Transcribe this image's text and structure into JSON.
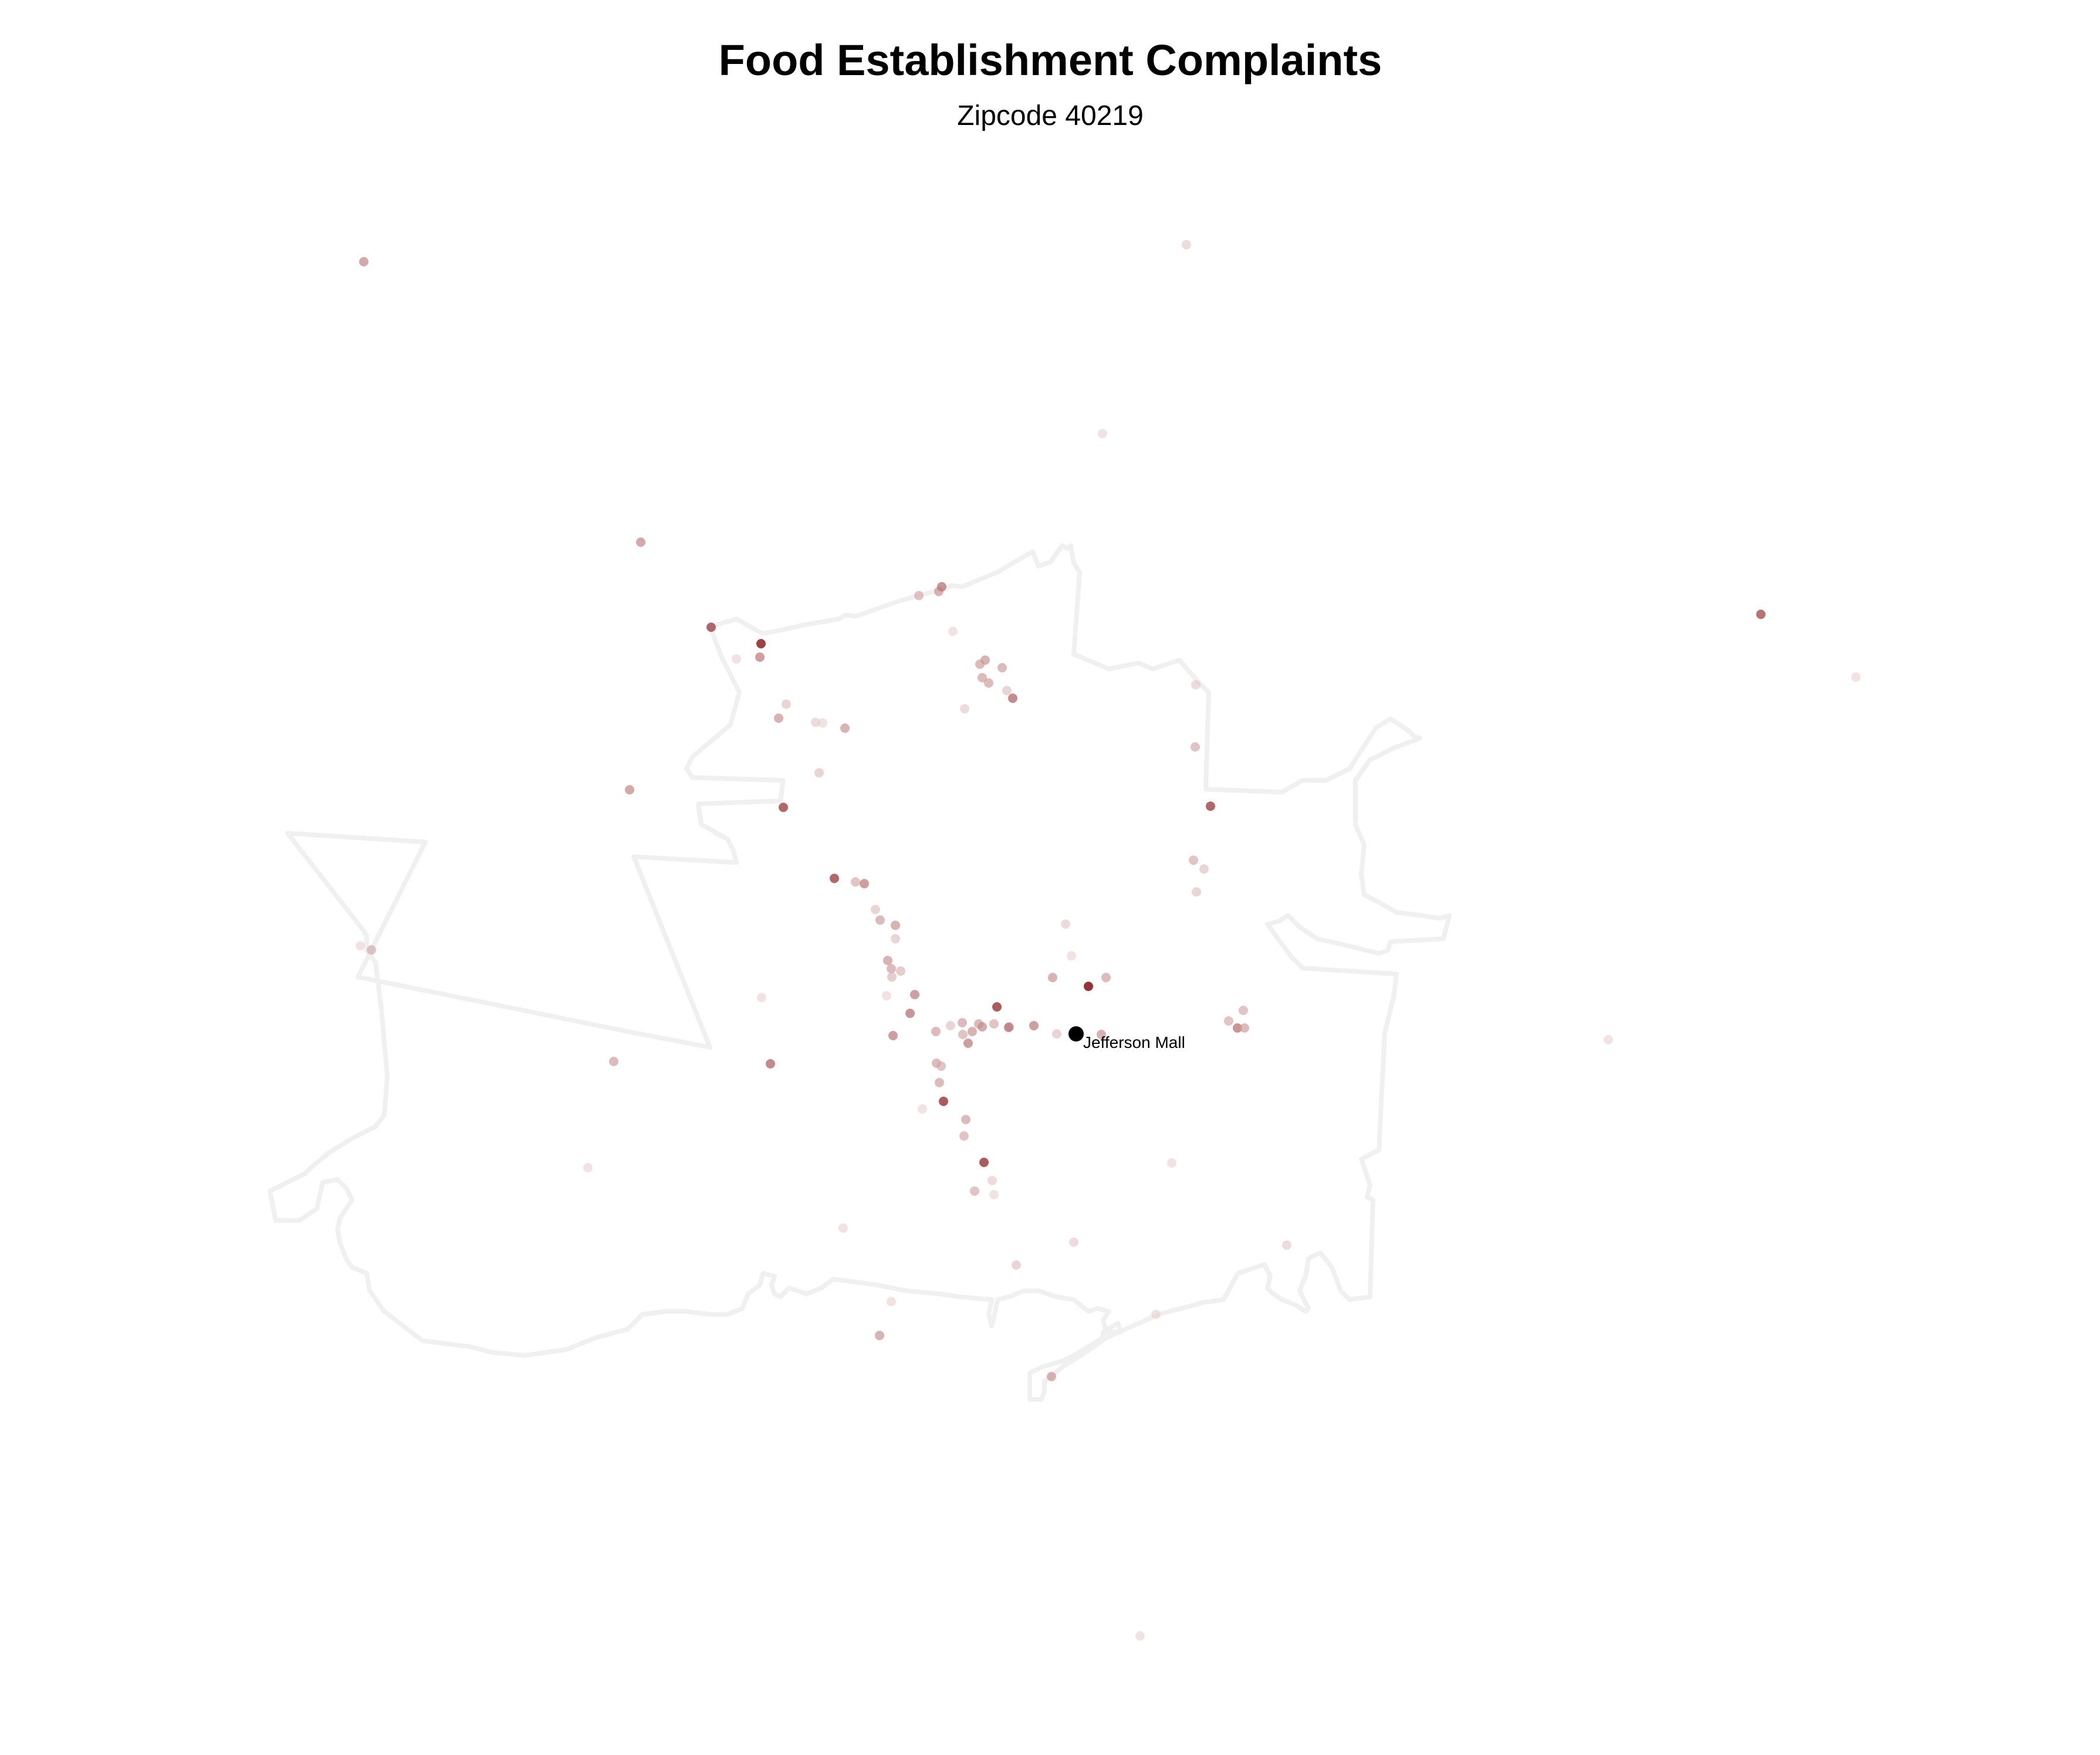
{
  "header": {
    "title": "Food Establishment Complaints",
    "subtitle": "Zipcode 40219"
  },
  "colors": {
    "boundary": "#f0f0f0",
    "point_dark": "#8b1a1a",
    "point_light": "#f3e4e4",
    "landmark": "#000000"
  },
  "landmark": {
    "label": "Jefferson Mall",
    "icon": "map-pin-dot"
  },
  "chart_data": {
    "type": "scatter",
    "map_layers": [
      "zipcode-boundary",
      "complaint-points",
      "landmark"
    ],
    "legend": "none",
    "grid": false
  }
}
